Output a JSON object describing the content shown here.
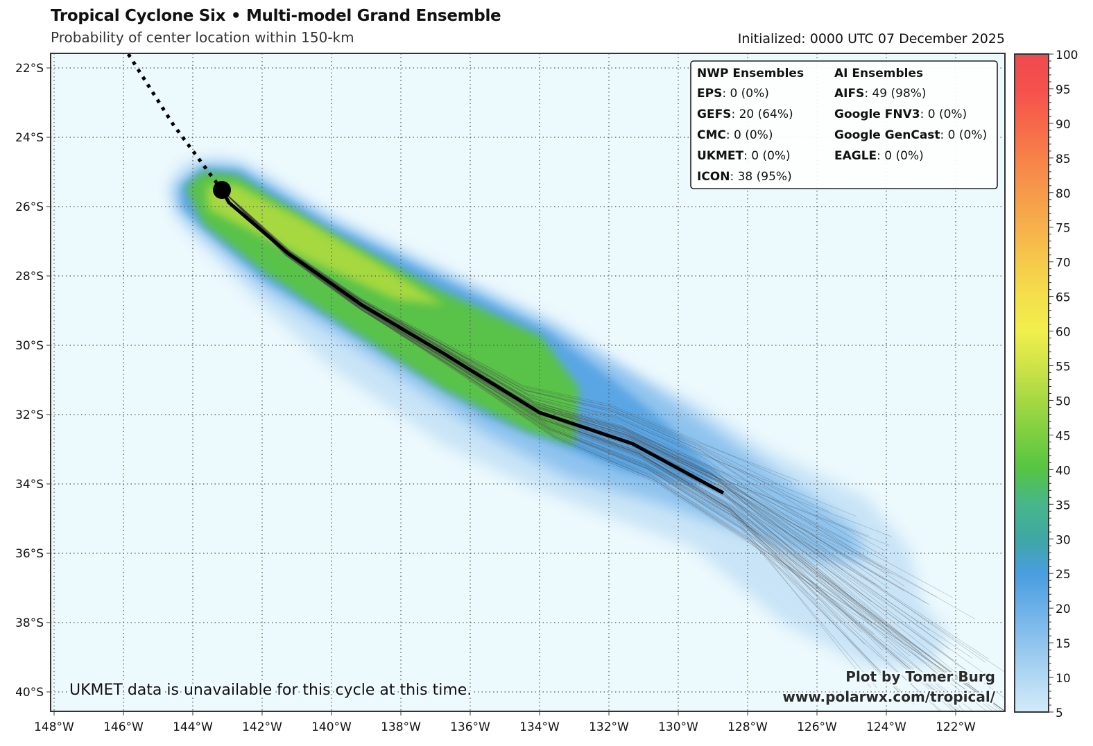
{
  "header": {
    "title": "Tropical Cyclone Six • Multi-model Grand Ensemble",
    "subtitle": "Probability of center location within 150-km",
    "initialized": "Initialized: 0000 UTC 07 December 2025"
  },
  "legend": {
    "nwp_title": "NWP Ensembles",
    "nwp": [
      {
        "model": "EPS",
        "value": ": 0 (0%)"
      },
      {
        "model": "GEFS",
        "value": ": 20 (64%)"
      },
      {
        "model": "CMC",
        "value": ": 0 (0%)"
      },
      {
        "model": "UKMET",
        "value": ": 0 (0%)"
      },
      {
        "model": "ICON",
        "value": ": 38 (95%)"
      }
    ],
    "ai_title": "AI Ensembles",
    "ai": [
      {
        "model": "AIFS",
        "value": ": 49 (98%)"
      },
      {
        "model": "Google FNV3",
        "value": ": 0 (0%)"
      },
      {
        "model": "Google GenCast",
        "value": ": 0 (0%)"
      },
      {
        "model": "EAGLE",
        "value": ": 0 (0%)"
      }
    ]
  },
  "note": "UKMET data is unavailable for this cycle at this time.",
  "credit": {
    "line1": "Plot by Tomer Burg",
    "line2": "www.polarwx.com/tropical/"
  },
  "chart_data": {
    "type": "map",
    "lon_range": [
      -148.1,
      -120.6
    ],
    "lat_range": [
      -40.6,
      -21.6
    ],
    "grid": true,
    "lon_ticks": [
      "148°W",
      "146°W",
      "144°W",
      "142°W",
      "140°W",
      "138°W",
      "136°W",
      "134°W",
      "132°W",
      "130°W",
      "128°W",
      "126°W",
      "124°W",
      "122°W"
    ],
    "lon_tick_values": [
      -148,
      -146,
      -144,
      -142,
      -140,
      -138,
      -136,
      -134,
      -132,
      -130,
      -128,
      -126,
      -124,
      -122
    ],
    "lat_ticks": [
      "22°S",
      "24°S",
      "26°S",
      "28°S",
      "30°S",
      "32°S",
      "34°S",
      "36°S",
      "38°S",
      "40°S"
    ],
    "lat_tick_values": [
      -22,
      -24,
      -26,
      -28,
      -30,
      -32,
      -34,
      -36,
      -38,
      -40
    ],
    "past_track": [
      [
        -145.86,
        -21.54
      ],
      [
        -144.56,
        -23.64
      ],
      [
        -143.16,
        -25.52
      ]
    ],
    "current_position": [
      -143.16,
      -25.52
    ],
    "ensemble_mean_track": [
      [
        -142.96,
        -25.88
      ],
      [
        -141.26,
        -27.34
      ],
      [
        -139.12,
        -28.84
      ],
      [
        -136.76,
        -30.24
      ],
      [
        -134.0,
        -31.94
      ],
      [
        -131.32,
        -32.84
      ],
      [
        -128.7,
        -34.26
      ]
    ],
    "colorbar": {
      "min": 5,
      "max": 100,
      "ticks": [
        "5",
        "10",
        "15",
        "20",
        "25",
        "30",
        "35",
        "40",
        "45",
        "50",
        "55",
        "60",
        "65",
        "70",
        "75",
        "80",
        "85",
        "90",
        "95",
        "100"
      ],
      "stops": [
        {
          "v": 5,
          "color": "#d3eaf9"
        },
        {
          "v": 10,
          "color": "#b2d8f3"
        },
        {
          "v": 15,
          "color": "#8fc4ee"
        },
        {
          "v": 20,
          "color": "#6bb0e8"
        },
        {
          "v": 25,
          "color": "#4a9de0"
        },
        {
          "v": 30,
          "color": "#3fa7a4"
        },
        {
          "v": 35,
          "color": "#47b68a"
        },
        {
          "v": 40,
          "color": "#55c444"
        },
        {
          "v": 45,
          "color": "#7ccf40"
        },
        {
          "v": 50,
          "color": "#a6d843"
        },
        {
          "v": 55,
          "color": "#cfe348"
        },
        {
          "v": 60,
          "color": "#f1ef4c"
        },
        {
          "v": 65,
          "color": "#f4df4b"
        },
        {
          "v": 70,
          "color": "#f6c94b"
        },
        {
          "v": 75,
          "color": "#f7b04b"
        },
        {
          "v": 80,
          "color": "#f79a4a"
        },
        {
          "v": 85,
          "color": "#f78149"
        },
        {
          "v": 90,
          "color": "#f7674a"
        },
        {
          "v": 95,
          "color": "#f6504c"
        },
        {
          "v": 100,
          "color": "#ee4a50"
        }
      ]
    },
    "background_color": "#ecf9fd"
  }
}
